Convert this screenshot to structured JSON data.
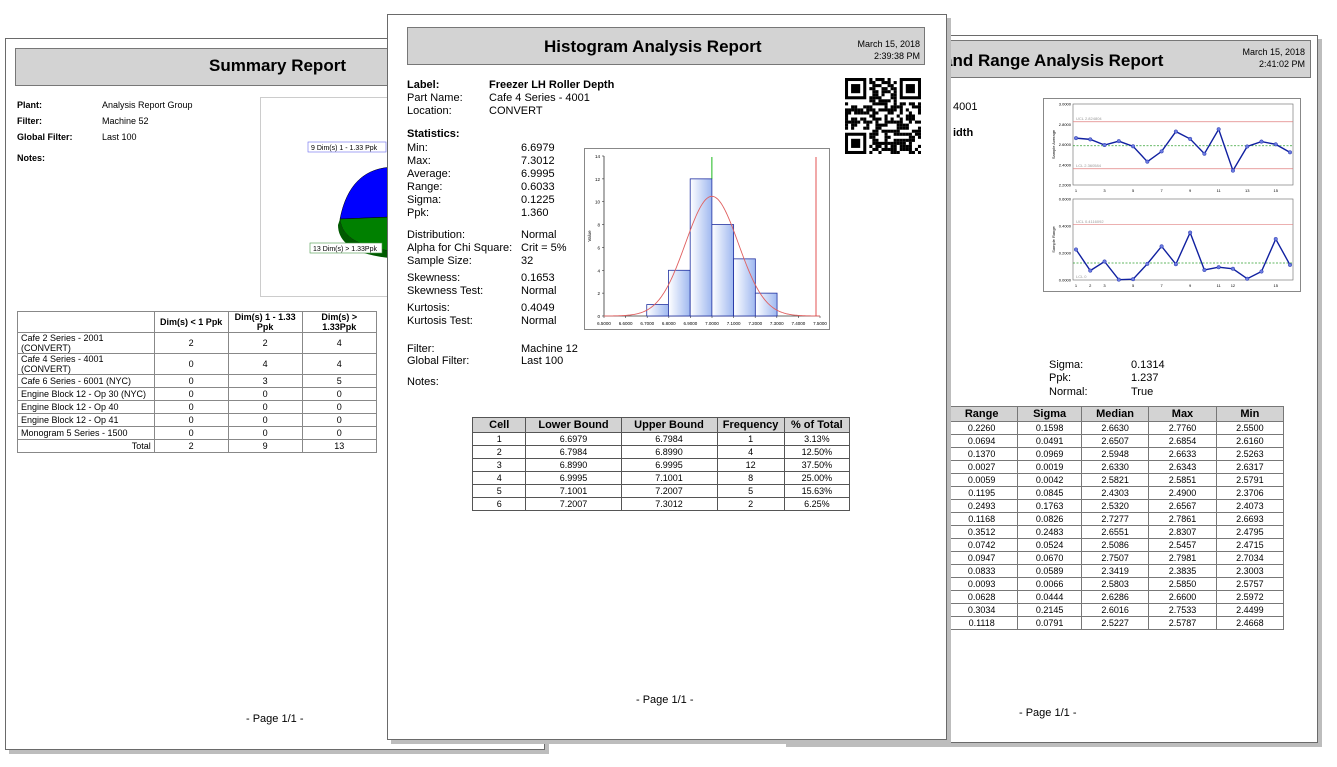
{
  "summary": {
    "title": "Summary Report",
    "fields": [
      {
        "label": "Plant:",
        "value": "Analysis Report Group"
      },
      {
        "label": "Filter:",
        "value": "Machine 52"
      },
      {
        "label": "Global Filter:",
        "value": "Last 100"
      },
      {
        "label": "Notes:",
        "value": ""
      }
    ],
    "pie_labels": [
      "9 Dim(s) 1 - 1.33 Ppk",
      "13 Dim(s) > 1.33Ppk"
    ],
    "pie_colors": {
      "blue": "#0000ff",
      "green": "#008000"
    },
    "table_headers": [
      "",
      "Dim(s) < 1 Ppk",
      "Dim(s) 1 - 1.33 Ppk",
      "Dim(s) > 1.33Ppk"
    ],
    "rows": [
      {
        "name": "Cafe 2 Series - 2001 (CONVERT)",
        "a": "2",
        "b": "2",
        "c": "4"
      },
      {
        "name": "Cafe 4 Series - 4001 (CONVERT)",
        "a": "0",
        "b": "4",
        "c": "4"
      },
      {
        "name": "Cafe 6 Series - 6001 (NYC)",
        "a": "0",
        "b": "3",
        "c": "5"
      },
      {
        "name": "Engine Block 12 - Op 30 (NYC)",
        "a": "0",
        "b": "0",
        "c": "0"
      },
      {
        "name": "Engine Block 12 - Op 40",
        "a": "0",
        "b": "0",
        "c": "0"
      },
      {
        "name": "Engine Block 12 - Op 41",
        "a": "0",
        "b": "0",
        "c": "0"
      },
      {
        "name": "Monogram 5 Series - 1500",
        "a": "0",
        "b": "0",
        "c": "0"
      }
    ],
    "total": {
      "name": "Total",
      "a": "2",
      "b": "9",
      "c": "13"
    },
    "footer": "- Page 1/1 -"
  },
  "xr": {
    "title": "and Range Analysis Report",
    "date": "March 15, 2018",
    "time": "2:41:02 PM",
    "part_fragment": "4001",
    "label_fragment": "idth",
    "stats": [
      {
        "label": "Sigma:",
        "value": "0.1314"
      },
      {
        "label": "Ppk:",
        "value": "1.237"
      },
      {
        "label": "Normal:",
        "value": "True"
      }
    ],
    "chart_top": {
      "ucl_label": "UCL 2.824804",
      "lcl_label": "LCL 2.360584",
      "y_ticks": [
        "3.0000",
        "2.8000",
        "2.6000",
        "2.4000",
        "2.2000"
      ],
      "y_label": "Sample Average"
    },
    "chart_bottom": {
      "ucl_label": "UCL 0.4116092",
      "lcl_label": "LCL 0",
      "y_ticks": [
        "0.6000",
        "0.4000",
        "0.2000",
        "0.0000"
      ],
      "y_label": "Sample Range"
    },
    "table_headers": [
      "Range",
      "Sigma",
      "Median",
      "Max",
      "Min"
    ],
    "rows": [
      [
        "0.2260",
        "0.1598",
        "2.6630",
        "2.7760",
        "2.5500"
      ],
      [
        "0.0694",
        "0.0491",
        "2.6507",
        "2.6854",
        "2.6160"
      ],
      [
        "0.1370",
        "0.0969",
        "2.5948",
        "2.6633",
        "2.5263"
      ],
      [
        "0.0027",
        "0.0019",
        "2.6330",
        "2.6343",
        "2.6317"
      ],
      [
        "0.0059",
        "0.0042",
        "2.5821",
        "2.5851",
        "2.5791"
      ],
      [
        "0.1195",
        "0.0845",
        "2.4303",
        "2.4900",
        "2.3706"
      ],
      [
        "0.2493",
        "0.1763",
        "2.5320",
        "2.6567",
        "2.4073"
      ],
      [
        "0.1168",
        "0.0826",
        "2.7277",
        "2.7861",
        "2.6693"
      ],
      [
        "0.3512",
        "0.2483",
        "2.6551",
        "2.8307",
        "2.4795"
      ],
      [
        "0.0742",
        "0.0524",
        "2.5086",
        "2.5457",
        "2.4715"
      ],
      [
        "0.0947",
        "0.0670",
        "2.7507",
        "2.7981",
        "2.7034"
      ],
      [
        "0.0833",
        "0.0589",
        "2.3419",
        "2.3835",
        "2.3003"
      ],
      [
        "0.0093",
        "0.0066",
        "2.5803",
        "2.5850",
        "2.5757"
      ],
      [
        "0.0628",
        "0.0444",
        "2.6286",
        "2.6600",
        "2.5972"
      ],
      [
        "0.3034",
        "0.2145",
        "2.6016",
        "2.7533",
        "2.4499"
      ],
      [
        "0.1118",
        "0.0791",
        "2.5227",
        "2.5787",
        "2.4668"
      ]
    ],
    "footer": "- Page 1/1 -"
  },
  "hist": {
    "title": "Histogram Analysis Report",
    "date": "March 15, 2018",
    "time": "2:39:38 PM",
    "label_key": "Label:",
    "label_value": "Freezer LH Roller Depth",
    "part_key": "Part Name:",
    "part_value": "Cafe 4 Series - 4001",
    "location_key": "Location:",
    "location_value": "CONVERT",
    "statistics_heading": "Statistics:",
    "stats1": [
      {
        "label": "Min:",
        "value": "6.6979"
      },
      {
        "label": "Max:",
        "value": "7.3012"
      },
      {
        "label": "Average:",
        "value": "6.9995"
      },
      {
        "label": "Range:",
        "value": "0.6033"
      },
      {
        "label": "Sigma:",
        "value": "0.1225"
      },
      {
        "label": "Ppk:",
        "value": "1.360"
      }
    ],
    "stats2": [
      {
        "label": "Distribution:",
        "value": "Normal"
      },
      {
        "label": "Alpha for Chi Square:",
        "value": "Crit = 5%"
      },
      {
        "label": "Sample Size:",
        "value": "32"
      }
    ],
    "stats3": [
      {
        "label": "Skewness:",
        "value": "0.1653"
      },
      {
        "label": "Skewness Test:",
        "value": "Normal"
      }
    ],
    "stats4": [
      {
        "label": "Kurtosis:",
        "value": "0.4049"
      },
      {
        "label": "Kurtosis Test:",
        "value": "Normal"
      }
    ],
    "filter_key": "Filter:",
    "filter_value": "Machine 12",
    "gfilter_key": "Global Filter:",
    "gfilter_value": "Last 100",
    "notes_key": "Notes:",
    "table_headers": [
      "Cell",
      "Lower Bound",
      "Upper Bound",
      "Frequency",
      "% of Total"
    ],
    "table_rows": [
      [
        "1",
        "6.6979",
        "6.7984",
        "1",
        "3.13%"
      ],
      [
        "2",
        "6.7984",
        "6.8990",
        "4",
        "12.50%"
      ],
      [
        "3",
        "6.8990",
        "6.9995",
        "12",
        "37.50%"
      ],
      [
        "4",
        "6.9995",
        "7.1001",
        "8",
        "25.00%"
      ],
      [
        "5",
        "7.1001",
        "7.2007",
        "5",
        "15.63%"
      ],
      [
        "6",
        "7.2007",
        "7.3012",
        "2",
        "6.25%"
      ]
    ],
    "footer": "- Page 1/1 -"
  },
  "chart_data": [
    {
      "type": "bar",
      "title": "",
      "xlabel": "",
      "ylabel": "Value",
      "bins": [
        [
          6.6979,
          6.7984
        ],
        [
          6.7984,
          6.899
        ],
        [
          6.899,
          6.9995
        ],
        [
          6.9995,
          7.1001
        ],
        [
          7.1001,
          7.2007
        ],
        [
          7.2007,
          7.3012
        ]
      ],
      "values": [
        1,
        4,
        12,
        8,
        5,
        2
      ],
      "xlim": [
        6.5,
        7.5
      ],
      "ylim": [
        0,
        14
      ],
      "x_ticks": [
        "6.5000",
        "6.6000",
        "6.7000",
        "6.8000",
        "6.9000",
        "7.0000",
        "7.1000",
        "7.2000",
        "7.3000",
        "7.4000",
        "7.5000"
      ],
      "y_ticks": [
        "0",
        "2",
        "4",
        "6",
        "8",
        "10",
        "12",
        "14"
      ],
      "normal_curve": {
        "mean": 6.9995,
        "sigma": 0.1225
      },
      "colors": {
        "bar": "#9fb8f0",
        "curve": "#e06060",
        "mean_line": "#00b000",
        "limit_line": "#e04040"
      }
    },
    {
      "type": "line",
      "title": "",
      "ylabel": "Sample Average",
      "x": [
        1,
        2,
        3,
        4,
        5,
        6,
        7,
        8,
        9,
        10,
        11,
        12,
        13,
        14,
        15,
        16
      ],
      "values": [
        2.663,
        2.6507,
        2.5948,
        2.633,
        2.5821,
        2.4303,
        2.532,
        2.7277,
        2.6551,
        2.5086,
        2.7507,
        2.3419,
        2.5803,
        2.6286,
        2.6016,
        2.5227
      ],
      "ylim": [
        2.2,
        3.0
      ],
      "x_ticks": [
        "1",
        "3",
        "5",
        "7",
        "9",
        "11",
        "13",
        "15"
      ],
      "ucl": 2.824804,
      "lcl": 2.360584
    },
    {
      "type": "line",
      "title": "",
      "ylabel": "Sample Range",
      "x": [
        1,
        2,
        3,
        4,
        5,
        6,
        7,
        8,
        9,
        10,
        11,
        12,
        13,
        14,
        15,
        16
      ],
      "values": [
        0.226,
        0.0694,
        0.137,
        0.0027,
        0.0059,
        0.1195,
        0.2493,
        0.1168,
        0.3512,
        0.0742,
        0.0947,
        0.0833,
        0.0093,
        0.0628,
        0.3034,
        0.1118
      ],
      "ylim": [
        0,
        0.6
      ],
      "x_ticks": [
        "1",
        "2",
        "3",
        "5",
        "7",
        "9",
        "11",
        "12",
        "15"
      ],
      "ucl": 0.4116092,
      "lcl": 0
    }
  ]
}
